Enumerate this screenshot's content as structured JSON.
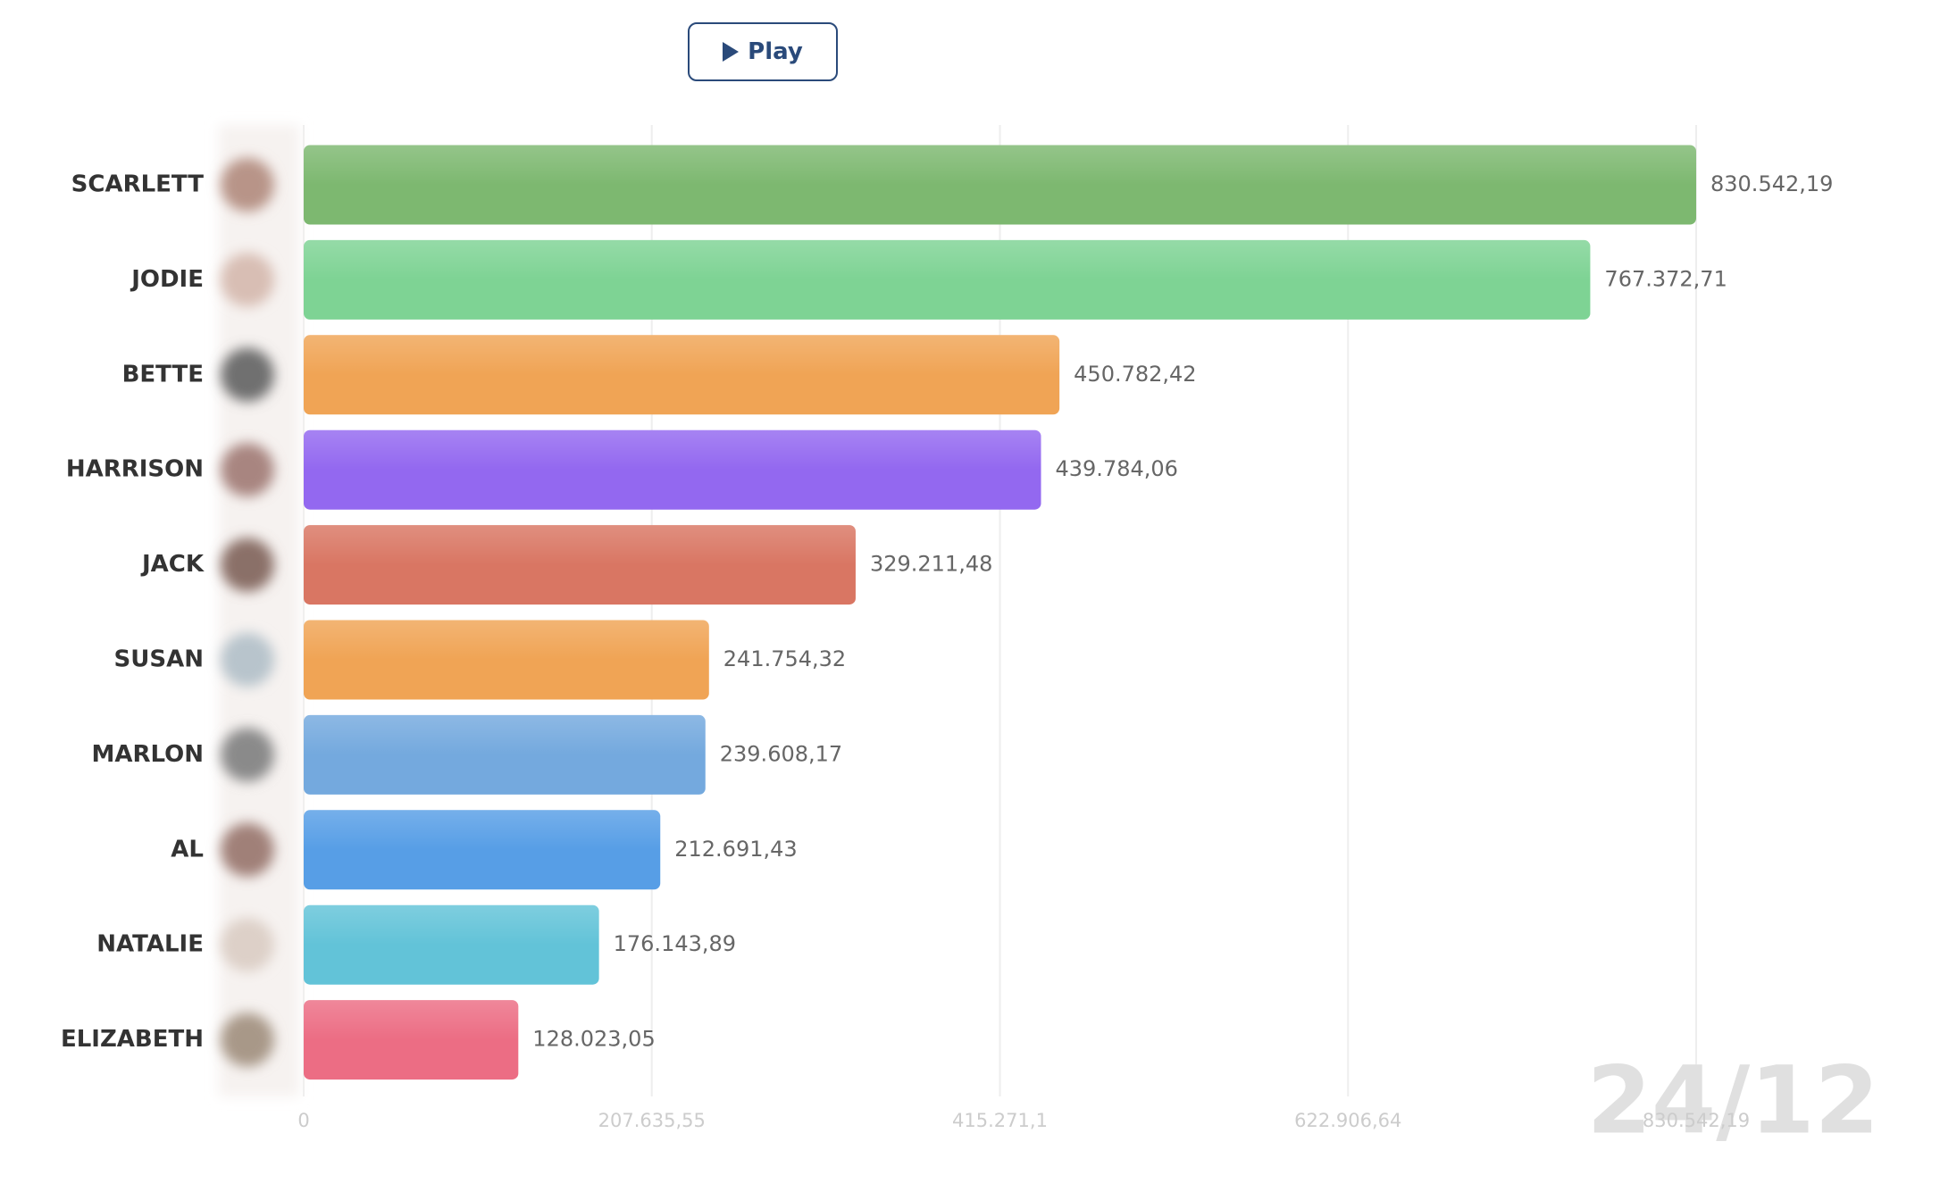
{
  "play_button": {
    "label": "Play"
  },
  "chart_data": {
    "type": "bar",
    "orientation": "horizontal",
    "date_label": "24/12",
    "categories": [
      "SCARLETT",
      "JODIE",
      "BETTE",
      "HARRISON",
      "JACK",
      "SUSAN",
      "MARLON",
      "AL",
      "NATALIE",
      "ELIZABETH"
    ],
    "values": [
      830542.19,
      767372.71,
      450782.42,
      439784.06,
      329211.48,
      241754.32,
      239608.17,
      212691.43,
      176143.89,
      128023.05
    ],
    "value_labels": [
      "830.542,19",
      "767.372,71",
      "450.782,42",
      "439.784,06",
      "329.211,48",
      "241.754,32",
      "239.608,17",
      "212.691,43",
      "176.143,89",
      "128.023,05"
    ],
    "colors": [
      "#7db870",
      "#7ed394",
      "#f0a455",
      "#9368f0",
      "#d97663",
      "#f0a455",
      "#74a9de",
      "#579ee6",
      "#62c3d8",
      "#ec6d84"
    ],
    "xlim": [
      0,
      830542.19
    ],
    "xticks": [
      0,
      {
        "value": 207635.55,
        "label": "207.635,55"
      },
      {
        "value": 415271.1,
        "label": "415.271,1"
      },
      {
        "value": 622906.64,
        "label": "622.906,64"
      },
      {
        "value": 830542.19,
        "label": "830.542,19"
      }
    ],
    "grid": true
  }
}
